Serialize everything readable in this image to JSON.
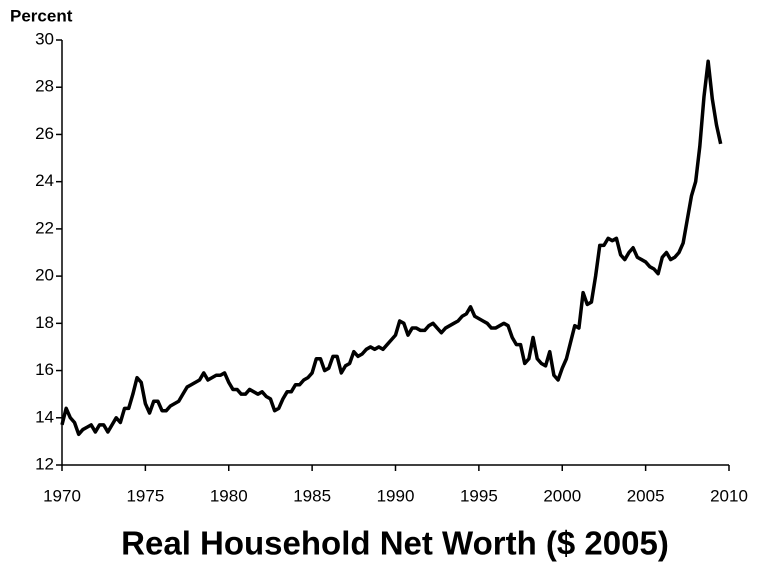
{
  "chart_data": {
    "type": "line",
    "ylabel": "Percent",
    "xlabel": "Real Household Net Worth ($ 2005)",
    "xlim": [
      1970,
      2010
    ],
    "xticks": [
      1970,
      1975,
      1980,
      1985,
      1990,
      1995,
      2000,
      2005,
      2010
    ],
    "ylim": [
      12,
      30
    ],
    "yticks": [
      12,
      14,
      16,
      18,
      20,
      22,
      24,
      26,
      28,
      30
    ],
    "series": [
      {
        "color": "#000000",
        "x": [
          1970,
          1970.25,
          1970.5,
          1970.75,
          1971,
          1971.25,
          1971.5,
          1971.75,
          1972,
          1972.25,
          1972.5,
          1972.75,
          1973,
          1973.25,
          1973.5,
          1973.75,
          1974,
          1974.25,
          1974.5,
          1974.75,
          1975,
          1975.25,
          1975.5,
          1975.75,
          1976,
          1976.25,
          1976.5,
          1976.75,
          1977,
          1977.25,
          1977.5,
          1977.75,
          1978,
          1978.25,
          1978.5,
          1978.75,
          1979,
          1979.25,
          1979.5,
          1979.75,
          1980,
          1980.25,
          1980.5,
          1980.75,
          1981,
          1981.25,
          1981.5,
          1981.75,
          1982,
          1982.25,
          1982.5,
          1982.75,
          1983,
          1983.25,
          1983.5,
          1983.75,
          1984,
          1984.25,
          1984.5,
          1984.75,
          1985,
          1985.25,
          1985.5,
          1985.75,
          1986,
          1986.25,
          1986.5,
          1986.75,
          1987,
          1987.25,
          1987.5,
          1987.75,
          1988,
          1988.25,
          1988.5,
          1988.75,
          1989,
          1989.25,
          1989.5,
          1989.75,
          1990,
          1990.25,
          1990.5,
          1990.75,
          1991,
          1991.25,
          1991.5,
          1991.75,
          1992,
          1992.25,
          1992.5,
          1992.75,
          1993,
          1993.25,
          1993.5,
          1993.75,
          1994,
          1994.25,
          1994.5,
          1994.75,
          1995,
          1995.25,
          1995.5,
          1995.75,
          1996,
          1996.25,
          1996.5,
          1996.75,
          1997,
          1997.25,
          1997.5,
          1997.75,
          1998,
          1998.25,
          1998.5,
          1998.75,
          1999,
          1999.25,
          1999.5,
          1999.75,
          2000,
          2000.25,
          2000.5,
          2000.75,
          2001,
          2001.25,
          2001.5,
          2001.75,
          2002,
          2002.25,
          2002.5,
          2002.75,
          2003,
          2003.25,
          2003.5,
          2003.75,
          2004,
          2004.25,
          2004.5,
          2004.75,
          2005,
          2005.25,
          2005.5,
          2005.75,
          2006,
          2006.25,
          2006.5,
          2006.75,
          2007,
          2007.25,
          2007.5,
          2007.75,
          2008,
          2008.25,
          2008.5,
          2008.75,
          2009,
          2009.25,
          2009.5
        ],
        "values": [
          13.7,
          14.4,
          14.0,
          13.8,
          13.3,
          13.5,
          13.6,
          13.7,
          13.4,
          13.7,
          13.7,
          13.4,
          13.7,
          14.0,
          13.8,
          14.4,
          14.4,
          15.0,
          15.7,
          15.5,
          14.6,
          14.2,
          14.7,
          14.7,
          14.3,
          14.3,
          14.5,
          14.6,
          14.7,
          15.0,
          15.3,
          15.4,
          15.5,
          15.6,
          15.9,
          15.6,
          15.7,
          15.8,
          15.8,
          15.9,
          15.5,
          15.2,
          15.2,
          15.0,
          15.0,
          15.2,
          15.1,
          15.0,
          15.1,
          14.9,
          14.8,
          14.3,
          14.4,
          14.8,
          15.1,
          15.1,
          15.4,
          15.4,
          15.6,
          15.7,
          15.9,
          16.5,
          16.5,
          16.0,
          16.1,
          16.6,
          16.6,
          15.9,
          16.2,
          16.3,
          16.8,
          16.6,
          16.7,
          16.9,
          17.0,
          16.9,
          17.0,
          16.9,
          17.1,
          17.3,
          17.5,
          18.1,
          18.0,
          17.5,
          17.8,
          17.8,
          17.7,
          17.7,
          17.9,
          18.0,
          17.8,
          17.6,
          17.8,
          17.9,
          18.0,
          18.1,
          18.3,
          18.4,
          18.7,
          18.3,
          18.2,
          18.1,
          18.0,
          17.8,
          17.8,
          17.9,
          18.0,
          17.9,
          17.4,
          17.1,
          17.1,
          16.3,
          16.5,
          17.4,
          16.5,
          16.3,
          16.2,
          16.8,
          15.8,
          15.6,
          16.1,
          16.5,
          17.2,
          17.9,
          17.8,
          19.3,
          18.8,
          18.9,
          20.0,
          21.3,
          21.3,
          21.6,
          21.5,
          21.6,
          20.9,
          20.7,
          21.0,
          21.2,
          20.8,
          20.7,
          20.6,
          20.4,
          20.3,
          20.1,
          20.8,
          21.0,
          20.7,
          20.8,
          21.0,
          21.4,
          22.4,
          23.4,
          24.0,
          25.5,
          27.6,
          29.1,
          27.5,
          26.4,
          25.6
        ]
      }
    ]
  }
}
